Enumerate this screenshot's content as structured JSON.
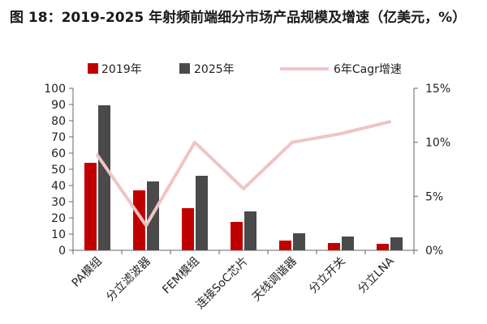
{
  "title": "图 18：2019-2025 年射频前端细分市场产品规模及增速（亿美元，%）",
  "colors": {
    "s2019": "#c00000",
    "s2025": "#4a4a4a",
    "cagr": "#f0c4c4",
    "axis": "#666666"
  },
  "chart_data": {
    "type": "bar",
    "categories": [
      "PA模组",
      "分立滤波器",
      "FEM模组",
      "连接SoC芯片",
      "天线调谐器",
      "分立开关",
      "分立LNA"
    ],
    "series": [
      {
        "name": "2019年",
        "type": "bar",
        "axis": "left",
        "values": [
          54,
          37,
          26,
          17.5,
          6,
          4.5,
          4
        ]
      },
      {
        "name": "2025年",
        "type": "bar",
        "axis": "left",
        "values": [
          89.5,
          42.5,
          46,
          24,
          10.5,
          8.5,
          8
        ]
      },
      {
        "name": "6年Cagr增速",
        "type": "line",
        "axis": "right",
        "values": [
          8.8,
          2.3,
          10.0,
          5.7,
          10.0,
          10.8,
          11.9
        ]
      }
    ],
    "ylim_left": [
      0,
      100
    ],
    "ylim_right": [
      0,
      15
    ],
    "yticks_left": [
      "0",
      "10",
      "20",
      "30",
      "40",
      "50",
      "60",
      "70",
      "80",
      "90",
      "100"
    ],
    "yticks_right": [
      "0%",
      "5%",
      "10%",
      "15%"
    ],
    "legend": "top",
    "grid": false
  }
}
